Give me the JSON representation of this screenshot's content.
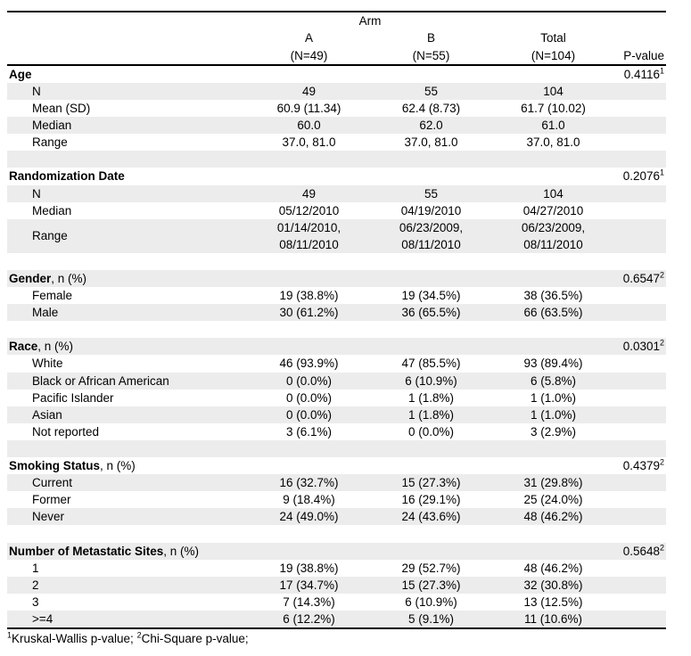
{
  "table": {
    "header": {
      "arm_label": "Arm",
      "columns": [
        {
          "label": "A",
          "n": "(N=49)"
        },
        {
          "label": "B",
          "n": "(N=55)"
        },
        {
          "label": "Total",
          "n": "(N=104)"
        }
      ],
      "pvalue_label": "P-value"
    },
    "sections": [
      {
        "title": "Age",
        "title_suffix": "",
        "pvalue": "0.4116",
        "pvalue_sup": "1",
        "rows": [
          {
            "label": "N",
            "a": "49",
            "b": "55",
            "total": "104"
          },
          {
            "label": "Mean (SD)",
            "a": "60.9 (11.34)",
            "b": "62.4 (8.73)",
            "total": "61.7 (10.02)"
          },
          {
            "label": "Median",
            "a": "60.0",
            "b": "62.0",
            "total": "61.0"
          },
          {
            "label": "Range",
            "a": "37.0, 81.0",
            "b": "37.0, 81.0",
            "total": "37.0, 81.0"
          }
        ]
      },
      {
        "title": "Randomization Date",
        "title_suffix": "",
        "pvalue": "0.2076",
        "pvalue_sup": "1",
        "rows": [
          {
            "label": "N",
            "a": "49",
            "b": "55",
            "total": "104"
          },
          {
            "label": "Median",
            "a": "05/12/2010",
            "b": "04/19/2010",
            "total": "04/27/2010"
          },
          {
            "label": "Range",
            "a": "01/14/2010,\n08/11/2010",
            "b": "06/23/2009,\n08/11/2010",
            "total": "06/23/2009,\n08/11/2010"
          }
        ]
      },
      {
        "title": "Gender",
        "title_suffix": ", n (%)",
        "pvalue": "0.6547",
        "pvalue_sup": "2",
        "rows": [
          {
            "label": "Female",
            "a": "19 (38.8%)",
            "b": "19 (34.5%)",
            "total": "38 (36.5%)"
          },
          {
            "label": "Male",
            "a": "30 (61.2%)",
            "b": "36 (65.5%)",
            "total": "66 (63.5%)"
          }
        ]
      },
      {
        "title": "Race",
        "title_suffix": ", n (%)",
        "pvalue": "0.0301",
        "pvalue_sup": "2",
        "rows": [
          {
            "label": "White",
            "a": "46 (93.9%)",
            "b": "47 (85.5%)",
            "total": "93 (89.4%)"
          },
          {
            "label": "Black or African American",
            "a": "0 (0.0%)",
            "b": "6 (10.9%)",
            "total": "6 (5.8%)"
          },
          {
            "label": "Pacific Islander",
            "a": "0 (0.0%)",
            "b": "1 (1.8%)",
            "total": "1 (1.0%)"
          },
          {
            "label": "Asian",
            "a": "0 (0.0%)",
            "b": "1 (1.8%)",
            "total": "1 (1.0%)"
          },
          {
            "label": "Not reported",
            "a": "3 (6.1%)",
            "b": "0 (0.0%)",
            "total": "3 (2.9%)"
          }
        ]
      },
      {
        "title": "Smoking Status",
        "title_suffix": ", n (%)",
        "pvalue": "0.4379",
        "pvalue_sup": "2",
        "rows": [
          {
            "label": "Current",
            "a": "16 (32.7%)",
            "b": "15 (27.3%)",
            "total": "31 (29.8%)"
          },
          {
            "label": "Former",
            "a": "9 (18.4%)",
            "b": "16 (29.1%)",
            "total": "25 (24.0%)"
          },
          {
            "label": "Never",
            "a": "24 (49.0%)",
            "b": "24 (43.6%)",
            "total": "48 (46.2%)"
          }
        ]
      },
      {
        "title": "Number of Metastatic Sites",
        "title_suffix": ", n (%)",
        "pvalue": "0.5648",
        "pvalue_sup": "2",
        "rows": [
          {
            "label": "1",
            "a": "19 (38.8%)",
            "b": "29 (52.7%)",
            "total": "48 (46.2%)"
          },
          {
            "label": "2",
            "a": "17 (34.7%)",
            "b": "15 (27.3%)",
            "total": "32 (30.8%)"
          },
          {
            "label": "3",
            "a": "7 (14.3%)",
            "b": "6 (10.9%)",
            "total": "13 (12.5%)"
          },
          {
            "label": ">=4",
            "a": "6 (12.2%)",
            "b": "5 (9.1%)",
            "total": "11 (10.6%)"
          }
        ]
      }
    ],
    "footnote": {
      "sup1": "1",
      "text1": "Kruskal-Wallis p-value; ",
      "sup2": "2",
      "text2": "Chi-Square p-value;"
    },
    "colors": {
      "row_shade": "#ececec",
      "border": "#000000",
      "text": "#000000"
    }
  }
}
